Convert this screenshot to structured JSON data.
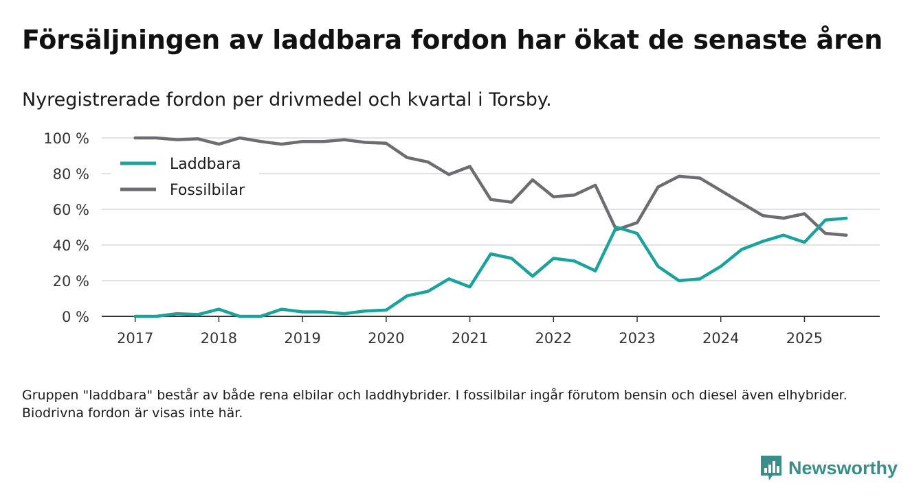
{
  "title": "Försäljningen av laddbara fordon har ökat de senaste åren",
  "subtitle": "Nyregistrerade fordon per drivmedel och kvartal i Torsby.",
  "note": "Gruppen \"laddbara\" består av både rena elbilar och laddhybrider. I fossilbilar ingår förutom bensin och diesel även elhybrider. Biodrivna fordon är visas inte här.",
  "brand": {
    "name": "Newsworthy",
    "icon": "newsworthy-logo-icon",
    "color": "#3a8d89"
  },
  "chart_data": {
    "type": "line",
    "title": "Försäljningen av laddbara fordon har ökat de senaste åren",
    "subtitle": "Nyregistrerade fordon per drivmedel och kvartal i Torsby.",
    "xlabel": "",
    "ylabel": "",
    "x_start": 2017.0,
    "x_step": 0.25,
    "xlim": [
      2016.6,
      2025.9
    ],
    "ylim": [
      0,
      100
    ],
    "x_ticks": [
      2017,
      2018,
      2019,
      2020,
      2021,
      2022,
      2023,
      2024,
      2025
    ],
    "y_ticks": [
      0,
      20,
      40,
      60,
      80,
      100
    ],
    "y_tick_labels": [
      "0 %",
      "20 %",
      "40 %",
      "60 %",
      "80 %",
      "100 %"
    ],
    "grid": true,
    "legend_position": "top-left",
    "series": [
      {
        "name": "Laddbara",
        "color": "#1aa39a",
        "values": [
          0,
          0,
          1.5,
          1,
          4,
          0,
          0,
          4,
          2.5,
          2.5,
          1.5,
          3,
          3.5,
          11.5,
          14,
          21,
          16.5,
          35,
          32.5,
          22.5,
          32.5,
          31,
          25.5,
          50,
          46.5,
          28,
          20,
          21,
          28,
          37.5,
          42,
          45.5,
          41.5,
          54,
          55
        ]
      },
      {
        "name": "Fossilbilar",
        "color": "#6d6c71",
        "values": [
          100,
          100,
          99,
          99.5,
          96.5,
          100,
          98,
          96.5,
          98,
          98,
          99,
          97.5,
          97,
          89,
          86.5,
          79.5,
          84,
          65.5,
          64,
          76.5,
          67,
          68,
          73.5,
          48.5,
          52.5,
          72.5,
          78.5,
          77.5,
          70.5,
          63.5,
          56.5,
          55,
          57.5,
          46.5,
          45.5
        ]
      }
    ]
  }
}
